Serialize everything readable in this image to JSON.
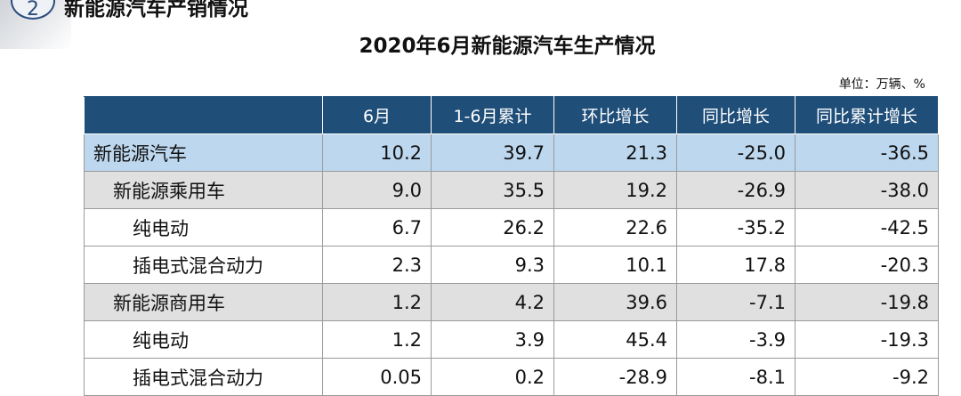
{
  "section": {
    "number": "2",
    "title": "新能源汽车产销情况"
  },
  "table_title": "2020年6月新能源汽车生产情况",
  "unit": "单位：万辆、%",
  "headers": [
    "",
    "6月",
    "1-6月累计",
    "环比增长",
    "同比增长",
    "同比累计增长"
  ],
  "rows": [
    {
      "name": "新能源汽车",
      "level": 0,
      "values": [
        "10.2",
        "39.7",
        "21.3",
        "-25.0",
        "-36.5"
      ]
    },
    {
      "name": "新能源乘用车",
      "level": 1,
      "values": [
        "9.0",
        "35.5",
        "19.2",
        "-26.9",
        "-38.0"
      ]
    },
    {
      "name": "纯电动",
      "level": 2,
      "values": [
        "6.7",
        "26.2",
        "22.6",
        "-35.2",
        "-42.5"
      ]
    },
    {
      "name": "插电式混合动力",
      "level": 2,
      "values": [
        "2.3",
        "9.3",
        "10.1",
        "17.8",
        "-20.3"
      ]
    },
    {
      "name": "新能源商用车",
      "level": 1,
      "values": [
        "1.2",
        "4.2",
        "39.6",
        "-7.1",
        "-19.8"
      ]
    },
    {
      "name": "纯电动",
      "level": 2,
      "values": [
        "1.2",
        "3.9",
        "45.4",
        "-3.9",
        "-19.3"
      ]
    },
    {
      "name": "插电式混合动力",
      "level": 2,
      "values": [
        "0.05",
        "0.2",
        "-28.9",
        "-8.1",
        "-9.2"
      ]
    }
  ],
  "colors": {
    "header_bg": "#1f4e79",
    "total_row_bg": "#bdd7ee",
    "subtotal_row_bg": "#e0e0e0"
  }
}
